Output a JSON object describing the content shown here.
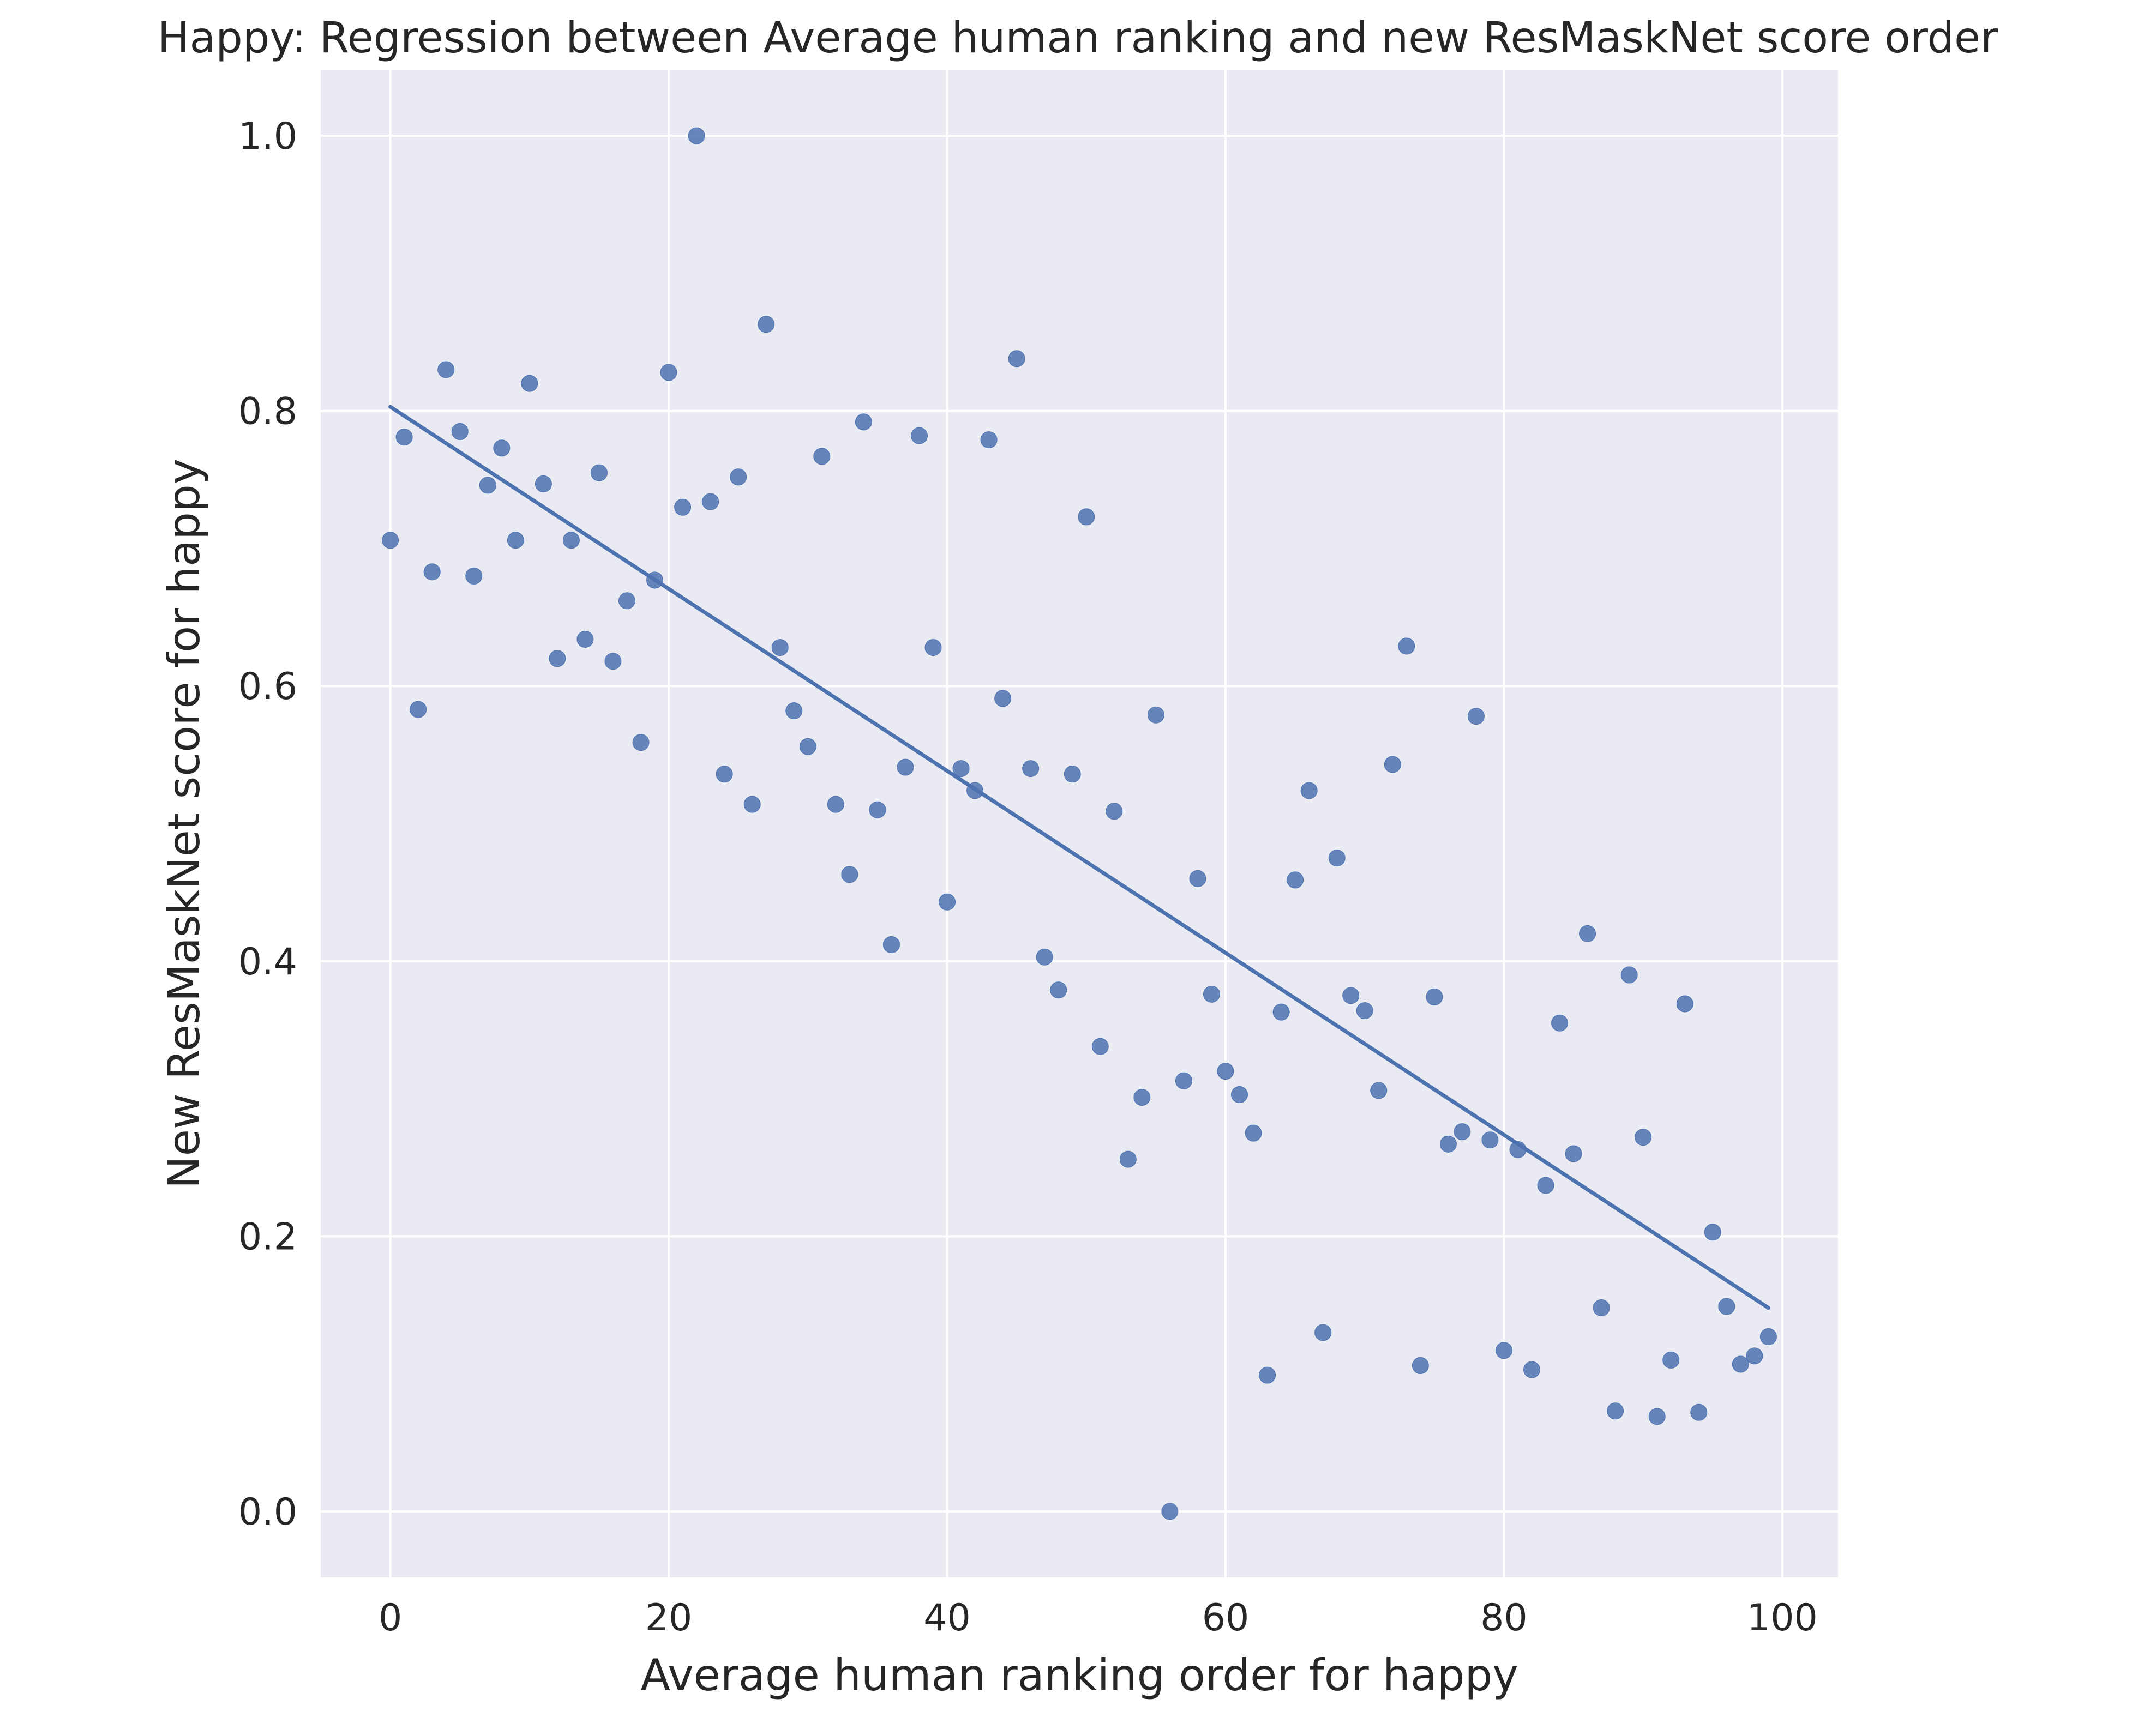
{
  "chart_data": {
    "type": "scatter",
    "title": "Happy: Regression between Average human ranking and new ResMaskNet score order",
    "xlabel": "Average human ranking order for happy",
    "ylabel": "New ResMaskNet score for happy",
    "xlim": [
      -5,
      104
    ],
    "ylim": [
      -0.048,
      1.048
    ],
    "xticks": [
      0,
      20,
      40,
      60,
      80,
      100
    ],
    "xtick_labels": [
      "0",
      "20",
      "40",
      "60",
      "80",
      "100"
    ],
    "yticks": [
      0.0,
      0.2,
      0.4,
      0.6,
      0.8,
      1.0
    ],
    "ytick_labels": [
      "0.0",
      "0.2",
      "0.4",
      "0.6",
      "0.8",
      "1.0"
    ],
    "grid": true,
    "background": "#eaeaf2",
    "point_color": "#4c72b0",
    "points": [
      [
        0,
        0.706
      ],
      [
        1,
        0.781
      ],
      [
        2,
        0.583
      ],
      [
        3,
        0.683
      ],
      [
        4,
        0.83
      ],
      [
        5,
        0.785
      ],
      [
        6,
        0.68
      ],
      [
        7,
        0.746
      ],
      [
        8,
        0.773
      ],
      [
        9,
        0.706
      ],
      [
        10,
        0.82
      ],
      [
        11,
        0.747
      ],
      [
        12,
        0.62
      ],
      [
        13,
        0.706
      ],
      [
        14,
        0.634
      ],
      [
        15,
        0.755
      ],
      [
        16,
        0.618
      ],
      [
        17,
        0.662
      ],
      [
        18,
        0.559
      ],
      [
        19,
        0.677
      ],
      [
        20,
        0.828
      ],
      [
        21,
        0.73
      ],
      [
        22,
        1.0
      ],
      [
        23,
        0.734
      ],
      [
        24,
        0.536
      ],
      [
        25,
        0.752
      ],
      [
        26,
        0.514
      ],
      [
        27,
        0.863
      ],
      [
        28,
        0.628
      ],
      [
        29,
        0.582
      ],
      [
        30,
        0.556
      ],
      [
        31,
        0.767
      ],
      [
        32,
        0.514
      ],
      [
        33,
        0.463
      ],
      [
        34,
        0.792
      ],
      [
        35,
        0.51
      ],
      [
        36,
        0.412
      ],
      [
        37,
        0.541
      ],
      [
        38,
        0.782
      ],
      [
        39,
        0.628
      ],
      [
        40,
        0.443
      ],
      [
        41,
        0.54
      ],
      [
        42,
        0.524
      ],
      [
        43,
        0.779
      ],
      [
        44,
        0.591
      ],
      [
        45,
        0.838
      ],
      [
        46,
        0.54
      ],
      [
        47,
        0.403
      ],
      [
        48,
        0.379
      ],
      [
        49,
        0.536
      ],
      [
        50,
        0.723
      ],
      [
        51,
        0.338
      ],
      [
        52,
        0.509
      ],
      [
        53,
        0.256
      ],
      [
        54,
        0.301
      ],
      [
        55,
        0.579
      ],
      [
        56,
        0.0
      ],
      [
        57,
        0.313
      ],
      [
        58,
        0.46
      ],
      [
        59,
        0.376
      ],
      [
        60,
        0.32
      ],
      [
        61,
        0.303
      ],
      [
        62,
        0.275
      ],
      [
        63,
        0.099
      ],
      [
        64,
        0.363
      ],
      [
        65,
        0.459
      ],
      [
        66,
        0.524
      ],
      [
        67,
        0.13
      ],
      [
        68,
        0.475
      ],
      [
        69,
        0.375
      ],
      [
        70,
        0.364
      ],
      [
        71,
        0.306
      ],
      [
        72,
        0.543
      ],
      [
        73,
        0.629
      ],
      [
        74,
        0.106
      ],
      [
        75,
        0.374
      ],
      [
        76,
        0.267
      ],
      [
        77,
        0.276
      ],
      [
        78,
        0.578
      ],
      [
        79,
        0.27
      ],
      [
        80,
        0.117
      ],
      [
        81,
        0.263
      ],
      [
        82,
        0.103
      ],
      [
        83,
        0.237
      ],
      [
        84,
        0.355
      ],
      [
        85,
        0.26
      ],
      [
        86,
        0.42
      ],
      [
        87,
        0.148
      ],
      [
        88,
        0.073
      ],
      [
        89,
        0.39
      ],
      [
        90,
        0.272
      ],
      [
        91,
        0.069
      ],
      [
        92,
        0.11
      ],
      [
        93,
        0.369
      ],
      [
        94,
        0.072
      ],
      [
        95,
        0.203
      ],
      [
        96,
        0.149
      ],
      [
        97,
        0.107
      ],
      [
        98,
        0.113
      ],
      [
        99,
        0.127
      ]
    ],
    "regression": {
      "x": [
        0,
        99
      ],
      "y": [
        0.803,
        0.148
      ]
    }
  }
}
